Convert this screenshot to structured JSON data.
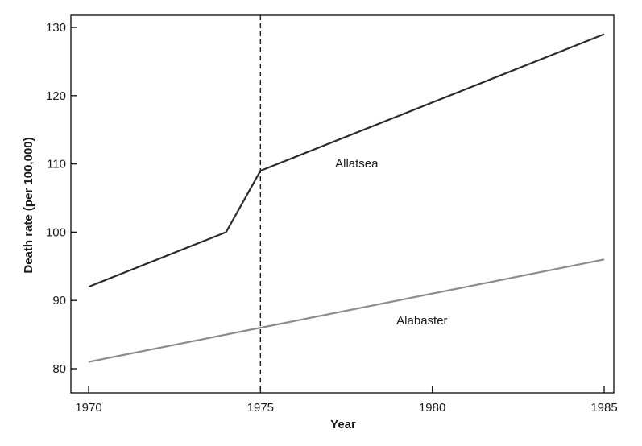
{
  "chart_data": {
    "type": "line",
    "title": "",
    "xlabel": "Year",
    "ylabel": "Death rate (per 100,000)",
    "xlim": [
      1970,
      1985
    ],
    "ylim": [
      77,
      132
    ],
    "x_ticks": [
      1970,
      1975,
      1980,
      1985
    ],
    "y_ticks": [
      80,
      90,
      100,
      110,
      120,
      130
    ],
    "grid": false,
    "reference_line": {
      "x": 1975,
      "style": "dashed"
    },
    "series": [
      {
        "name": "Allatsea",
        "color": "#2b2b2b",
        "x": [
          1970,
          1974,
          1975,
          1985
        ],
        "y": [
          92,
          100,
          109,
          129
        ],
        "label_at": {
          "x": 1977.8,
          "y": 109.5
        }
      },
      {
        "name": "Alabaster",
        "color": "#8c8c8c",
        "x": [
          1970,
          1975,
          1985
        ],
        "y": [
          81,
          86,
          96
        ],
        "label_at": {
          "x": 1979.7,
          "y": 86.5
        }
      }
    ]
  }
}
